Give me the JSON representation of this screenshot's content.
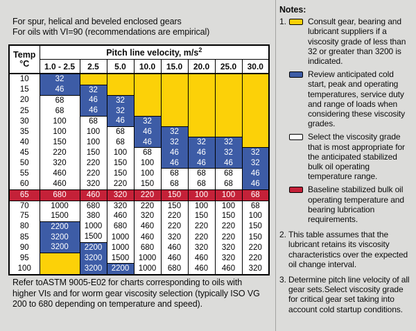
{
  "colors": {
    "yellow": "#fcd108",
    "blue": "#3d5ca6",
    "red": "#c42138",
    "white": "#ffffff",
    "background": "#dcdcda",
    "divider": "#a3a3a1",
    "table_border": "#000000"
  },
  "intro": {
    "line1": "For spur, helical and beveled enclosed gears",
    "line2": "For oils with VI=90 (recommendations are empirical)"
  },
  "footer": {
    "text": "Refer toASTM 9005-E02 for charts corresponding to oils with higher VIs and for worm gear viscosity selection (typically ISO VG 200 to 680 depending on temperature and speed)."
  },
  "notes": {
    "title": "Notes:",
    "legend": [
      {
        "number": "1.",
        "color": "yellow",
        "text": "Consult gear, bearing and lubricant suppliers if a viscosity grade of less than 32 or greater than 3200 is indicated."
      },
      {
        "number": "",
        "color": "blue",
        "text": "Review anticipated cold start, peak and operating temperatures, service duty and range of loads when considering these viscosity grades."
      },
      {
        "number": "",
        "color": "white",
        "text": "Select the viscosity grade that is most appropriate for the anticipated stabilized bulk oil operating temperature range."
      },
      {
        "number": "",
        "color": "red",
        "text": "Baseline stabilized bulk oil operating temperature and bearing lubrication requirements."
      }
    ],
    "items": [
      {
        "number": "2.",
        "text": "This table assumes that the lubricant retains its viscosity characteristics over the expected oil change interval."
      },
      {
        "number": "3.",
        "text": "Determine pitch line velocity of all gear sets.Select viscosity grade for critical gear set taking into account cold startup conditions."
      }
    ]
  },
  "chart_data": {
    "type": "table",
    "title": "ISO viscosity grade selection by bulk oil temperature and pitch line velocity",
    "row_header_line1": "Temp",
    "row_header_line2": "°C",
    "group_header": "Pitch line velocity, m/s",
    "group_header_sup": "2",
    "columns": [
      "1.0 - 2.5",
      "2.5",
      "5.0",
      "10.0",
      "15.0",
      "20.0",
      "25.0",
      "30.0"
    ],
    "cell_color_codes": {
      "Y": "yellow (consult suppliers)",
      "B": "blue (review cold start/peak conditions)",
      "W": "white (select most appropriate grade)",
      "R": "red (baseline stabilized bulk oil temperature)"
    },
    "rows": [
      {
        "temp": "10",
        "color": "W",
        "cells": [
          "32|B",
          "|Y",
          "|Y",
          "|Y",
          "|Y",
          "|Y",
          "|Y",
          "|Y"
        ]
      },
      {
        "temp": "15",
        "color": "W",
        "cells": [
          "46|B",
          "32|B",
          "|Y",
          "|Y",
          "|Y",
          "|Y",
          "|Y",
          "|Y"
        ]
      },
      {
        "temp": "20",
        "color": "W",
        "cells": [
          "68|W",
          "46|B",
          "32|B",
          "|Y",
          "|Y",
          "|Y",
          "|Y",
          "|Y"
        ]
      },
      {
        "temp": "25",
        "color": "W",
        "cells": [
          "68|W",
          "46|B",
          "32|B",
          "|Y",
          "|Y",
          "|Y",
          "|Y",
          "|Y"
        ]
      },
      {
        "temp": "30",
        "color": "W",
        "cells": [
          "100|W",
          "68|W",
          "46|B",
          "32|B",
          "|Y",
          "|Y",
          "|Y",
          "|Y"
        ]
      },
      {
        "temp": "35",
        "color": "W",
        "cells": [
          "100|W",
          "100|W",
          "68|W",
          "46|B",
          "32|B",
          "|Y",
          "|Y",
          "|Y"
        ]
      },
      {
        "temp": "40",
        "color": "W",
        "cells": [
          "150|W",
          "100|W",
          "68|W",
          "46|B",
          "32|B",
          "32|B",
          "32|B",
          "|Y"
        ]
      },
      {
        "temp": "45",
        "color": "W",
        "cells": [
          "220|W",
          "150|W",
          "100|W",
          "68|W",
          "46|B",
          "46|B",
          "32|B",
          "32|B"
        ]
      },
      {
        "temp": "50",
        "color": "W",
        "cells": [
          "320|W",
          "220|W",
          "150|W",
          "100|W",
          "46|B",
          "46|B",
          "46|B",
          "32|B"
        ]
      },
      {
        "temp": "55",
        "color": "W",
        "cells": [
          "460|W",
          "220|W",
          "150|W",
          "100|W",
          "68|W",
          "68|W",
          "68|W",
          "46|B"
        ]
      },
      {
        "temp": "60",
        "color": "W",
        "cells": [
          "460|W",
          "320|W",
          "220|W",
          "150|W",
          "68|W",
          "68|W",
          "68|W",
          "46|B"
        ]
      },
      {
        "temp": "65",
        "color": "R",
        "cells": [
          "680|R",
          "460|R",
          "320|R",
          "220|R",
          "150|R",
          "100|R",
          "100|R",
          "68|R"
        ]
      },
      {
        "temp": "70",
        "color": "W",
        "cells": [
          "1000|W",
          "680|W",
          "320|W",
          "220|W",
          "150|W",
          "100|W",
          "100|W",
          "68|W"
        ]
      },
      {
        "temp": "75",
        "color": "W",
        "cells": [
          "1500|W",
          "380|W",
          "460|W",
          "320|W",
          "220|W",
          "150|W",
          "150|W",
          "100|W"
        ]
      },
      {
        "temp": "80",
        "color": "W",
        "cells": [
          "2200|B",
          "1000|W",
          "680|W",
          "460|W",
          "220|W",
          "220|W",
          "220|W",
          "150|W"
        ]
      },
      {
        "temp": "85",
        "color": "W",
        "cells": [
          "3200|B",
          "1500|W",
          "1000|W",
          "460|W",
          "320|W",
          "220|W",
          "220|W",
          "150|W"
        ]
      },
      {
        "temp": "90",
        "color": "W",
        "cells": [
          "3200|B",
          "2200|B",
          "1000|W",
          "680|W",
          "460|W",
          "320|W",
          "320|W",
          "220|W"
        ]
      },
      {
        "temp": "95",
        "color": "W",
        "cells": [
          "|Y",
          "3200|B",
          "1500|W",
          "1000|W",
          "460|W",
          "460|W",
          "320|W",
          "220|W"
        ]
      },
      {
        "temp": "100",
        "color": "W",
        "cells": [
          "|Y",
          "3200|B",
          "2200|B",
          "1000|W",
          "680|W",
          "460|W",
          "460|W",
          "320|W"
        ]
      }
    ]
  }
}
